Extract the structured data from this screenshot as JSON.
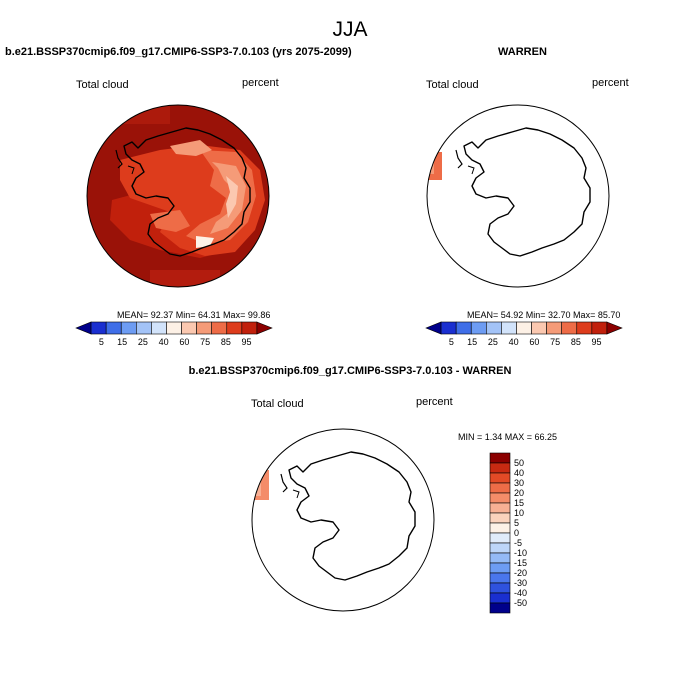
{
  "page": {
    "title": "JJA"
  },
  "panels": {
    "left": {
      "title": "b.e21.BSSP370cmip6.f09_g17.CMIP6-SSP3-7.0.103 (yrs 2075-2099)",
      "variable": "Total cloud",
      "units": "percent",
      "stats": "MEAN=  92.37  Min=  64.31  Max=  99.86"
    },
    "right": {
      "title": "WARREN",
      "variable": "Total cloud",
      "units": "percent",
      "stats": "MEAN=  54.92  Min=  32.70  Max=  85.70"
    },
    "diff": {
      "title": "b.e21.BSSP370cmip6.f09_g17.CMIP6-SSP3-7.0.103 - WARREN",
      "variable": "Total cloud",
      "units": "percent",
      "stats": "MIN =   1.34 MAX =  66.25"
    }
  },
  "colors": {
    "abs_scale": [
      "#00008b",
      "#1a2fd0",
      "#3f6ee8",
      "#6d9cf3",
      "#a3c3f7",
      "#d2e3fa",
      "#fdf1e6",
      "#fbc8b0",
      "#f59b78",
      "#ee6c47",
      "#dd3c1c",
      "#c1200c",
      "#8b0000"
    ],
    "diff_scale": [
      "#00008b",
      "#1a2fd0",
      "#2f52de",
      "#4a76ec",
      "#6d9cf3",
      "#94baf6",
      "#bdd6f9",
      "#e0ecfb",
      "#fdf1e6",
      "#fbd2bc",
      "#f8b094",
      "#f48c69",
      "#ee6c47",
      "#e24a26",
      "#c82a12",
      "#8b0000"
    ],
    "field_dark": "#9a1208"
  },
  "chart_data": [
    {
      "type": "heatmap",
      "projection": "south-polar-stereographic",
      "title": "b.e21.BSSP370cmip6.f09_g17.CMIP6-SSP3-7.0.103 (yrs 2075-2099)",
      "variable": "Total cloud",
      "units": "percent",
      "mean": 92.37,
      "min": 64.31,
      "max": 99.86,
      "colorbar_ticks": [
        "5",
        "15",
        "25",
        "40",
        "60",
        "75",
        "85",
        "95"
      ]
    },
    {
      "type": "heatmap",
      "projection": "south-polar-stereographic",
      "title": "WARREN",
      "variable": "Total cloud",
      "units": "percent",
      "mean": 54.92,
      "min": 32.7,
      "max": 85.7,
      "colorbar_ticks": [
        "5",
        "15",
        "25",
        "40",
        "60",
        "75",
        "85",
        "95"
      ]
    },
    {
      "type": "heatmap",
      "projection": "south-polar-stereographic",
      "title": "b.e21.BSSP370cmip6.f09_g17.CMIP6-SSP3-7.0.103 - WARREN",
      "variable": "Total cloud",
      "units": "percent",
      "min": 1.34,
      "max": 66.25,
      "colorbar_ticks": [
        "50",
        "40",
        "30",
        "20",
        "15",
        "10",
        "5",
        "0",
        "-5",
        "-10",
        "-15",
        "-20",
        "-30",
        "-40",
        "-50"
      ]
    }
  ]
}
